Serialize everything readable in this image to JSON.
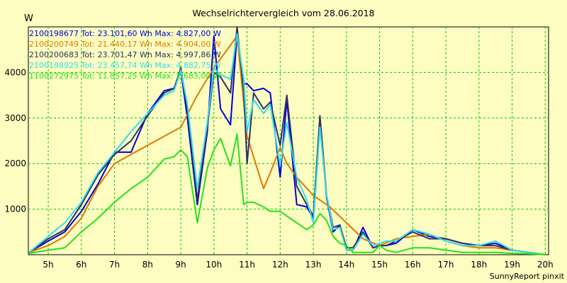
{
  "chart_data": {
    "type": "line",
    "title": "Wechselrichtervergleich vom 28.06.2018",
    "ylabel": "W",
    "footer": "SunnyReport pinxit",
    "grid": true,
    "legend_position": "top-left",
    "xlim": [
      4.4,
      20.1
    ],
    "ylim": [
      0,
      5000
    ],
    "x_ticks": [
      5,
      6,
      7,
      8,
      9,
      10,
      11,
      12,
      13,
      14,
      15,
      16,
      17,
      18,
      19,
      20
    ],
    "x_tick_labels": [
      "5h",
      "6h",
      "7h",
      "8h",
      "9h",
      "10h",
      "11h",
      "12h",
      "13h",
      "14h",
      "15h",
      "16h",
      "17h",
      "18h",
      "19h",
      "20h"
    ],
    "y_ticks": [
      1000,
      2000,
      3000,
      4000
    ],
    "y_tick_labels": [
      "1000",
      "2000",
      "3000",
      "4000"
    ],
    "series": [
      {
        "name": "2100198677",
        "legend_text": "2100198677 Tot: 23.101,60 Wh Max: 4.827,00 W",
        "color": "#0000d8",
        "x": [
          4.42,
          5.0,
          5.5,
          6.0,
          6.5,
          7.0,
          7.5,
          8.0,
          8.5,
          8.8,
          9.0,
          9.2,
          9.5,
          9.8,
          10.0,
          10.2,
          10.5,
          10.7,
          10.9,
          11.0,
          11.2,
          11.5,
          11.7,
          12.0,
          12.2,
          12.5,
          12.8,
          13.0,
          13.2,
          13.4,
          13.6,
          13.8,
          14.0,
          14.2,
          14.5,
          14.8,
          15.0,
          15.2,
          15.5,
          16.0,
          16.5,
          17.0,
          17.5,
          18.0,
          18.5,
          19.0,
          19.5,
          20.0
        ],
        "y": [
          50,
          300,
          500,
          950,
          1550,
          2250,
          2250,
          3100,
          3600,
          3650,
          4050,
          3000,
          1100,
          2700,
          4800,
          3200,
          2850,
          4850,
          3750,
          3750,
          3600,
          3650,
          3550,
          1700,
          3400,
          1100,
          1050,
          800,
          3000,
          1250,
          500,
          650,
          100,
          100,
          600,
          150,
          200,
          200,
          250,
          550,
          400,
          350,
          250,
          200,
          250,
          100,
          50,
          0
        ]
      },
      {
        "name": "2100200749",
        "legend_text": "2100200749 Tot: 21.440,17 Wh Max: 4.904,00 W",
        "color": "#e07800",
        "x": [
          4.42,
          5.0,
          5.5,
          6.0,
          6.5,
          7.0,
          7.5,
          8.0,
          8.5,
          9.0,
          9.5,
          10.0,
          10.7,
          11.0,
          11.5,
          11.7,
          12.0,
          12.2,
          12.5,
          13.0,
          13.5,
          14.0,
          14.5,
          15.0,
          15.5,
          16.0,
          16.5,
          17.0,
          17.5,
          18.0,
          18.5,
          19.0,
          19.5,
          20.0
        ],
        "y": [
          50,
          200,
          400,
          800,
          1500,
          2000,
          2200,
          2400,
          2600,
          2800,
          3500,
          4100,
          4800,
          2600,
          1450,
          1800,
          2350,
          2000,
          1700,
          1300,
          1050,
          700,
          350,
          200,
          350,
          400,
          450,
          300,
          200,
          150,
          150,
          100,
          50,
          0
        ]
      },
      {
        "name": "2100200683",
        "legend_text": "2100200683 Tot: 23.701,47 Wh Max: 4.997,86 W",
        "color": "#303060",
        "x": [
          4.42,
          5.0,
          5.5,
          6.0,
          6.5,
          7.0,
          7.5,
          8.0,
          8.5,
          8.8,
          9.0,
          9.2,
          9.5,
          9.8,
          10.0,
          10.2,
          10.5,
          10.7,
          10.9,
          11.0,
          11.2,
          11.5,
          11.7,
          12.0,
          12.2,
          12.5,
          12.8,
          13.0,
          13.2,
          13.4,
          13.6,
          13.8,
          14.0,
          14.2,
          14.5,
          14.8,
          15.0,
          15.2,
          15.5,
          16.0,
          16.5,
          17.0,
          17.5,
          18.0,
          18.5,
          19.0,
          19.5,
          20.0
        ],
        "y": [
          50,
          350,
          550,
          1100,
          1750,
          2200,
          2500,
          3050,
          3550,
          3650,
          4100,
          3200,
          1200,
          2800,
          4000,
          3900,
          3550,
          5000,
          3600,
          2000,
          3550,
          3200,
          3350,
          2400,
          3500,
          1500,
          1100,
          850,
          3050,
          1300,
          600,
          650,
          150,
          150,
          500,
          150,
          200,
          200,
          300,
          500,
          350,
          350,
          250,
          200,
          200,
          100,
          50,
          0
        ]
      },
      {
        "name": "2100198925",
        "legend_text": "2100198925 Tot: 23.457,74 Wh Max: 4.882,75 W",
        "color": "#30dcf0",
        "x": [
          4.42,
          5.0,
          5.5,
          6.0,
          6.5,
          7.0,
          7.5,
          8.0,
          8.5,
          8.8,
          9.0,
          9.2,
          9.5,
          9.8,
          10.0,
          10.2,
          10.5,
          10.7,
          10.9,
          11.0,
          11.2,
          11.5,
          11.7,
          12.0,
          12.2,
          12.5,
          12.8,
          13.0,
          13.2,
          13.4,
          13.6,
          13.8,
          14.0,
          14.2,
          14.5,
          14.8,
          15.0,
          15.2,
          15.5,
          16.0,
          16.5,
          17.0,
          17.5,
          18.0,
          18.5,
          19.0,
          19.5,
          20.0
        ],
        "y": [
          50,
          400,
          700,
          1150,
          1800,
          2250,
          2700,
          3100,
          3500,
          3600,
          4050,
          3300,
          1450,
          2900,
          4100,
          3950,
          3850,
          4850,
          3850,
          2700,
          3400,
          3100,
          3300,
          1950,
          2900,
          1700,
          1200,
          700,
          2800,
          1300,
          550,
          600,
          100,
          100,
          450,
          200,
          250,
          300,
          300,
          550,
          450,
          300,
          200,
          200,
          300,
          100,
          50,
          0
        ]
      },
      {
        "name": "1100272975",
        "legend_text": "1100272975 Tot: 11.857,25 Wh Max: 2.683,00 W",
        "color": "#28e018",
        "x": [
          4.42,
          5.0,
          5.5,
          6.0,
          6.5,
          7.0,
          7.5,
          8.0,
          8.5,
          8.8,
          9.0,
          9.2,
          9.5,
          9.8,
          10.0,
          10.2,
          10.5,
          10.7,
          10.9,
          11.0,
          11.2,
          11.5,
          11.7,
          12.0,
          12.2,
          12.5,
          12.8,
          13.0,
          13.2,
          13.4,
          13.6,
          13.8,
          14.0,
          14.2,
          14.5,
          14.8,
          15.0,
          15.2,
          15.5,
          16.0,
          16.5,
          17.0,
          17.5,
          18.0,
          18.5,
          19.0,
          19.5,
          20.0
        ],
        "y": [
          30,
          100,
          150,
          500,
          800,
          1150,
          1450,
          1700,
          2100,
          2150,
          2300,
          2150,
          700,
          1900,
          2300,
          2550,
          1950,
          2650,
          1100,
          1150,
          1150,
          1050,
          950,
          950,
          850,
          700,
          550,
          650,
          900,
          750,
          400,
          250,
          200,
          50,
          50,
          50,
          200,
          100,
          50,
          150,
          150,
          100,
          50,
          50,
          50,
          30,
          20,
          0
        ]
      }
    ]
  }
}
